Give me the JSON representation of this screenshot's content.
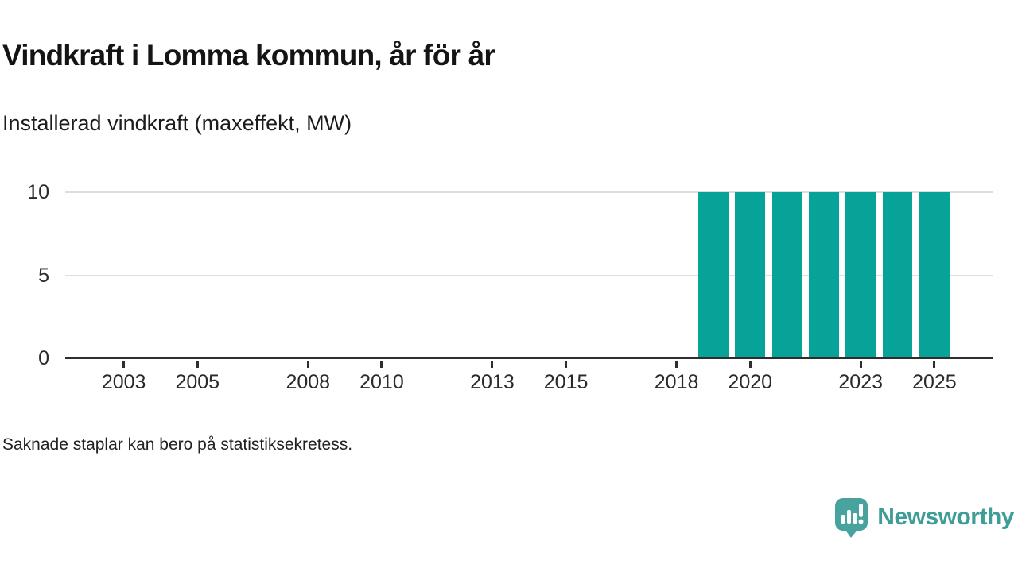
{
  "header": {
    "title": "Vindkraft i Lomma kommun, år för år",
    "subtitle": "Installerad vindkraft (maxeffekt, MW)"
  },
  "chart_data": {
    "type": "bar",
    "title": "Vindkraft i Lomma kommun, år för år",
    "subtitle": "Installerad vindkraft (maxeffekt, MW)",
    "ylabel": "Installerad vindkraft (maxeffekt, MW)",
    "xlabel": "",
    "unit": "MW",
    "categories": [
      2002,
      2003,
      2004,
      2005,
      2006,
      2007,
      2008,
      2009,
      2010,
      2011,
      2012,
      2013,
      2014,
      2015,
      2016,
      2017,
      2018,
      2019,
      2020,
      2021,
      2022,
      2023,
      2024,
      2025
    ],
    "values": [
      null,
      null,
      null,
      null,
      null,
      null,
      null,
      null,
      null,
      null,
      null,
      null,
      null,
      null,
      null,
      null,
      null,
      10,
      10,
      10,
      10,
      10,
      10,
      10
    ],
    "missing_values_note": "Saknade staplar kan bero på statistiksekretess.",
    "x_ticks": [
      2003,
      2005,
      2008,
      2010,
      2013,
      2015,
      2018,
      2020,
      2023,
      2025
    ],
    "y_ticks": [
      0,
      5,
      10
    ],
    "ylim": [
      0,
      10.5
    ],
    "grid": "horizontal",
    "legend": "none",
    "bar_color": "#07a399",
    "gridline_color": "#dedede",
    "axis_color": "#2e2e2e"
  },
  "footer": {
    "note": "Saknade staplar kan bero på statistiksekretess."
  },
  "branding": {
    "logo_text": "Newsworthy",
    "logo_color": "#3f9d98",
    "icon_color": "#48a39e",
    "icon": "bar-chart-speech-bubble-icon"
  }
}
